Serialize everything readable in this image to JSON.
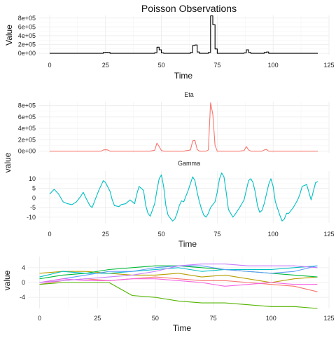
{
  "chart_data": [
    {
      "type": "line",
      "step": true,
      "title": "Poisson Observations",
      "xlabel": "Time",
      "ylabel": "Value",
      "xlim": [
        -5,
        125
      ],
      "ylim": [
        -30000,
        860000
      ],
      "xticks": [
        0,
        25,
        50,
        75,
        100,
        125
      ],
      "yticks": [
        0,
        200000,
        400000,
        600000,
        800000
      ],
      "ytick_labels": [
        "0e+00",
        "2e+05",
        "4e+05",
        "6e+05",
        "8e+05"
      ],
      "grid": true,
      "series": [
        {
          "color": "#000000",
          "x": [
            0,
            23,
            24,
            25,
            26,
            27,
            28,
            29,
            30,
            35,
            40,
            45,
            47,
            48,
            49,
            50,
            51,
            52,
            55,
            60,
            63,
            64,
            65,
            66,
            67,
            68,
            70,
            71,
            72,
            73,
            74,
            75,
            80,
            85,
            87,
            88,
            89,
            90,
            92,
            95,
            96,
            97,
            98,
            100,
            105,
            110,
            115,
            120
          ],
          "y": [
            0,
            0,
            20000,
            25000,
            20000,
            0,
            0,
            0,
            0,
            0,
            0,
            0,
            15000,
            140000,
            80000,
            10000,
            0,
            0,
            0,
            0,
            20000,
            180000,
            190000,
            30000,
            0,
            0,
            0,
            20000,
            850000,
            650000,
            100000,
            0,
            0,
            0,
            10000,
            80000,
            20000,
            0,
            0,
            0,
            20000,
            30000,
            0,
            0,
            0,
            0,
            0,
            0
          ]
        }
      ]
    },
    {
      "type": "line",
      "facets": [
        {
          "strip": "Eta",
          "ylim": [
            -30000,
            870000
          ],
          "yticks": [
            0,
            200000,
            400000,
            600000,
            800000
          ],
          "ytick_labels": [
            "0e+00",
            "2e+05",
            "4e+05",
            "6e+05",
            "8e+05"
          ],
          "color": "#F8766D",
          "x": [
            0,
            23,
            24,
            25,
            26,
            27,
            28,
            29,
            30,
            35,
            40,
            45,
            47,
            48,
            49,
            50,
            51,
            52,
            55,
            60,
            63,
            64,
            65,
            66,
            67,
            68,
            70,
            71,
            72,
            73,
            74,
            75,
            80,
            85,
            87,
            88,
            89,
            90,
            92,
            95,
            96,
            97,
            98,
            100,
            105,
            110,
            115,
            120
          ],
          "y": [
            0,
            0,
            20000,
            25000,
            20000,
            0,
            0,
            0,
            0,
            0,
            0,
            0,
            15000,
            140000,
            80000,
            10000,
            0,
            0,
            0,
            0,
            20000,
            180000,
            190000,
            30000,
            0,
            0,
            0,
            20000,
            850000,
            650000,
            100000,
            0,
            0,
            0,
            10000,
            80000,
            20000,
            0,
            0,
            0,
            20000,
            30000,
            0,
            0,
            0,
            0,
            0,
            0
          ]
        },
        {
          "strip": "Gamma",
          "ylim": [
            -13,
            14
          ],
          "yticks": [
            -10,
            -5,
            0,
            5,
            10
          ],
          "ytick_labels": [
            "-10",
            "-5",
            "0",
            "5",
            "10"
          ],
          "color": "#00BFC4",
          "x": [
            0,
            2,
            4,
            6,
            8,
            10,
            12,
            14,
            15,
            16,
            18,
            19,
            20,
            22,
            24,
            25,
            27,
            28,
            29,
            31,
            32,
            34,
            35,
            36,
            38,
            39,
            40,
            42,
            43,
            44,
            45,
            47,
            48,
            49,
            50,
            51,
            52,
            53,
            55,
            56,
            57,
            58,
            59,
            60,
            62,
            64,
            65,
            66,
            67,
            68,
            69,
            70,
            71,
            72,
            73,
            74,
            75,
            76,
            77,
            78,
            79,
            80,
            82,
            83,
            85,
            86,
            87,
            88,
            89,
            90,
            91,
            92,
            93,
            94,
            95,
            96,
            97,
            98,
            99,
            100,
            101,
            103,
            104,
            105,
            106,
            107,
            109,
            110,
            111,
            112,
            113,
            115,
            116,
            117,
            119,
            120
          ],
          "y": [
            2,
            4.5,
            2,
            -2,
            -3,
            -3.5,
            -2,
            1,
            3,
            0.5,
            -4,
            -5,
            -2,
            4,
            9,
            8,
            3.5,
            -1,
            -4,
            -4.5,
            -3.5,
            -3,
            -2,
            -1,
            -3,
            2,
            6,
            4,
            -4,
            -8,
            -9.5,
            -3,
            4,
            10,
            12,
            6,
            -4,
            -9,
            -12,
            -11,
            -8,
            -4,
            -1.5,
            -2,
            4,
            11,
            9,
            3,
            -2,
            -6,
            -9,
            -10,
            -8,
            -5,
            -3.5,
            -2,
            3,
            10,
            13,
            11,
            3,
            -6,
            -10,
            -8.5,
            -5,
            -3,
            -1,
            4,
            9,
            10,
            8,
            3,
            -4,
            -7.5,
            -6.5,
            -3,
            2,
            7,
            10,
            6,
            -2,
            -9,
            -12,
            -11,
            -8,
            -8,
            -5,
            -3,
            -1,
            2,
            6,
            7,
            3,
            -1,
            8,
            8.5
          ]
        }
      ],
      "xlabel": "Time",
      "ylabel": "value",
      "xlim": [
        -5,
        125
      ],
      "xticks": [
        0,
        25,
        50,
        75,
        100,
        125
      ],
      "grid": true
    },
    {
      "type": "line",
      "xlabel": "Time",
      "ylabel": "value",
      "xlim": [
        -5,
        125
      ],
      "ylim": [
        -7,
        7
      ],
      "xticks": [
        0,
        25,
        50,
        75,
        100,
        125
      ],
      "yticks": [
        -4,
        0,
        4
      ],
      "ytick_labels": [
        "-4",
        "0",
        "4"
      ],
      "grid": true,
      "series": [
        {
          "color": "#F8766D",
          "x": [
            0,
            10,
            20,
            30,
            40,
            50,
            60,
            70,
            80,
            90,
            100,
            110,
            120
          ],
          "y": [
            -0.5,
            0.5,
            1,
            0.5,
            1,
            1.5,
            1,
            0.5,
            0.5,
            0,
            -0.5,
            -1,
            -2.5
          ]
        },
        {
          "color": "#B79F00",
          "x": [
            0,
            10,
            20,
            30,
            40,
            50,
            60,
            70,
            80,
            90,
            100,
            110,
            120
          ],
          "y": [
            2.5,
            3,
            3,
            2.5,
            2,
            2,
            2.5,
            1.5,
            2,
            1,
            0,
            1,
            1.5
          ]
        },
        {
          "color": "#00BA38",
          "x": [
            0,
            10,
            20,
            30,
            40,
            50,
            60,
            70,
            80,
            90,
            100,
            110,
            120
          ],
          "y": [
            1,
            2,
            2.5,
            3.5,
            4,
            4.5,
            4.5,
            4,
            3.5,
            3,
            2.5,
            2,
            1.5
          ]
        },
        {
          "color": "#00BFC4",
          "x": [
            0,
            10,
            20,
            30,
            40,
            50,
            60,
            70,
            80,
            90,
            100,
            110,
            120
          ],
          "y": [
            1.5,
            3,
            2.5,
            2.5,
            3,
            3.5,
            4,
            3,
            3.5,
            3.5,
            3.5,
            4,
            4.5
          ]
        },
        {
          "color": "#619CFF",
          "x": [
            0,
            10,
            20,
            30,
            40,
            50,
            60,
            70,
            80,
            90,
            100,
            110,
            120
          ],
          "y": [
            0,
            1,
            2,
            3,
            3,
            4,
            4.5,
            4.5,
            3.5,
            3,
            2.5,
            3,
            4.5
          ]
        },
        {
          "color": "#F564E3",
          "x": [
            0,
            10,
            20,
            30,
            40,
            50,
            60,
            70,
            80,
            90,
            100,
            110,
            120
          ],
          "y": [
            0,
            1,
            0.5,
            0.5,
            1,
            1,
            0.5,
            0,
            -1,
            -0.5,
            0,
            -0.5,
            -0.5
          ]
        },
        {
          "color": "#C77CFF",
          "x": [
            0,
            10,
            20,
            30,
            40,
            50,
            60,
            70,
            80,
            90,
            100,
            110,
            120
          ],
          "y": [
            0,
            0.5,
            1,
            1.5,
            2,
            3,
            4.5,
            5,
            5,
            4.5,
            4.5,
            4.5,
            4
          ]
        },
        {
          "color": "#53B400",
          "x": [
            0,
            10,
            20,
            30,
            40,
            50,
            60,
            70,
            80,
            90,
            100,
            110,
            120
          ],
          "y": [
            -0.5,
            0,
            0,
            0,
            -3.5,
            -4,
            -5,
            -5.5,
            -5.5,
            -6,
            -6.5,
            -6.5,
            -7
          ]
        }
      ]
    }
  ]
}
